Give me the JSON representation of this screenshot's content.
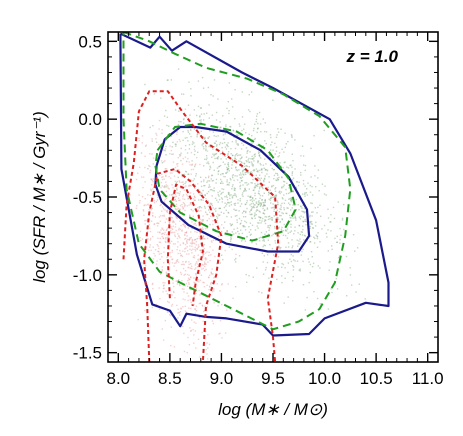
{
  "chart_data": {
    "type": "scatter",
    "annotation": "z = 1.0",
    "xlabel": "log (M∗ / M⊙)",
    "ylabel": "log (SFR / M∗ / Gyr⁻¹)",
    "xlim": [
      7.9,
      11.1
    ],
    "ylim": [
      -1.56,
      0.56
    ],
    "x_ticks": [
      "8.0",
      "8.5",
      "9.0",
      "9.5",
      "10.0",
      "10.5",
      "11.0"
    ],
    "y_ticks": [
      "0.5",
      "0.0",
      "-0.5",
      "-1.0",
      "-1.5"
    ],
    "grid": false,
    "legend": "none",
    "colors": {
      "green_points": "#7fa67f",
      "red_points": "#e79a9a",
      "blue_contour": "#1a1a8c",
      "green_contour": "#1f9e1f",
      "red_contour": "#dd2020"
    },
    "series": [
      {
        "kind": "contour",
        "style": "solid",
        "color": "#1a1a8c",
        "points": [
          [
            8.02,
            0.55
          ],
          [
            8.31,
            0.46
          ],
          [
            8.4,
            0.53
          ],
          [
            8.52,
            0.44
          ],
          [
            8.66,
            0.5
          ],
          [
            9.2,
            0.3
          ],
          [
            9.5,
            0.2
          ],
          [
            10.05,
            0.0
          ],
          [
            10.25,
            -0.22
          ],
          [
            10.5,
            -0.65
          ],
          [
            10.62,
            -1.05
          ],
          [
            10.62,
            -1.2
          ],
          [
            10.4,
            -1.18
          ],
          [
            10.0,
            -1.28
          ],
          [
            9.85,
            -1.38
          ],
          [
            9.5,
            -1.39
          ],
          [
            9.4,
            -1.32
          ],
          [
            9.05,
            -1.28
          ],
          [
            8.85,
            -1.27
          ],
          [
            8.66,
            -1.25
          ],
          [
            8.6,
            -1.33
          ],
          [
            8.5,
            -1.23
          ],
          [
            8.33,
            -1.19
          ],
          [
            8.18,
            -0.87
          ],
          [
            8.03,
            -0.32
          ],
          [
            8.02,
            0.55
          ]
        ]
      },
      {
        "kind": "contour",
        "style": "solid",
        "color": "#1a1a8c",
        "points": [
          [
            8.37,
            -0.3
          ],
          [
            8.45,
            -0.13
          ],
          [
            8.6,
            -0.05
          ],
          [
            8.75,
            -0.05
          ],
          [
            9.05,
            -0.08
          ],
          [
            9.38,
            -0.2
          ],
          [
            9.65,
            -0.37
          ],
          [
            9.83,
            -0.58
          ],
          [
            9.85,
            -0.75
          ],
          [
            9.75,
            -0.85
          ],
          [
            9.45,
            -0.85
          ],
          [
            9.05,
            -0.8
          ],
          [
            8.68,
            -0.68
          ],
          [
            8.42,
            -0.53
          ],
          [
            8.36,
            -0.42
          ],
          [
            8.37,
            -0.3
          ]
        ]
      },
      {
        "kind": "contour",
        "style": "dashed",
        "color": "#1f9e1f",
        "points": [
          [
            8.05,
            0.56
          ],
          [
            8.3,
            0.5
          ],
          [
            8.55,
            0.42
          ],
          [
            8.85,
            0.33
          ],
          [
            9.25,
            0.26
          ],
          [
            9.6,
            0.16
          ],
          [
            9.95,
            0.02
          ],
          [
            10.2,
            -0.18
          ],
          [
            10.25,
            -0.45
          ],
          [
            10.2,
            -0.75
          ],
          [
            10.1,
            -1.05
          ],
          [
            9.95,
            -1.22
          ],
          [
            9.75,
            -1.3
          ],
          [
            9.5,
            -1.35
          ],
          [
            9.2,
            -1.25
          ],
          [
            8.9,
            -1.15
          ],
          [
            8.6,
            -1.05
          ],
          [
            8.4,
            -0.98
          ],
          [
            8.2,
            -0.8
          ],
          [
            8.08,
            -0.45
          ],
          [
            8.05,
            0.0
          ],
          [
            8.05,
            0.56
          ]
        ]
      },
      {
        "kind": "contour",
        "style": "dashed",
        "color": "#1f9e1f",
        "points": [
          [
            8.38,
            -0.2
          ],
          [
            8.55,
            -0.05
          ],
          [
            8.8,
            -0.03
          ],
          [
            9.15,
            -0.08
          ],
          [
            9.45,
            -0.2
          ],
          [
            9.65,
            -0.38
          ],
          [
            9.72,
            -0.58
          ],
          [
            9.6,
            -0.72
          ],
          [
            9.3,
            -0.78
          ],
          [
            8.95,
            -0.72
          ],
          [
            8.6,
            -0.6
          ],
          [
            8.4,
            -0.45
          ],
          [
            8.36,
            -0.3
          ],
          [
            8.38,
            -0.2
          ]
        ]
      },
      {
        "kind": "contour",
        "style": "dashed",
        "color": "#dd2020",
        "points": [
          [
            8.05,
            -0.9
          ],
          [
            8.08,
            -0.55
          ],
          [
            8.15,
            -0.28
          ],
          [
            8.2,
            0.05
          ],
          [
            8.3,
            0.18
          ],
          [
            8.48,
            0.18
          ],
          [
            8.62,
            0.05
          ],
          [
            8.85,
            -0.15
          ],
          [
            9.2,
            -0.3
          ],
          [
            9.52,
            -0.5
          ],
          [
            9.55,
            -0.8
          ],
          [
            9.45,
            -1.15
          ],
          [
            9.5,
            -1.4
          ],
          [
            9.52,
            -1.56
          ]
        ]
      },
      {
        "kind": "contour",
        "style": "dashed",
        "color": "#dd2020",
        "points": [
          [
            8.3,
            -1.56
          ],
          [
            8.28,
            -1.2
          ],
          [
            8.25,
            -0.9
          ],
          [
            8.3,
            -0.6
          ],
          [
            8.38,
            -0.35
          ],
          [
            8.55,
            -0.32
          ],
          [
            8.7,
            -0.4
          ],
          [
            8.88,
            -0.55
          ],
          [
            9.0,
            -0.75
          ],
          [
            8.95,
            -1.0
          ],
          [
            8.85,
            -1.2
          ],
          [
            8.82,
            -1.56
          ]
        ]
      },
      {
        "kind": "contour",
        "style": "dashed",
        "color": "#dd2020",
        "points": [
          [
            8.5,
            -1.15
          ],
          [
            8.48,
            -0.9
          ],
          [
            8.5,
            -0.6
          ],
          [
            8.56,
            -0.42
          ],
          [
            8.66,
            -0.45
          ],
          [
            8.78,
            -0.62
          ],
          [
            8.82,
            -0.85
          ],
          [
            8.75,
            -1.05
          ],
          [
            8.72,
            -1.2
          ]
        ]
      }
    ]
  }
}
